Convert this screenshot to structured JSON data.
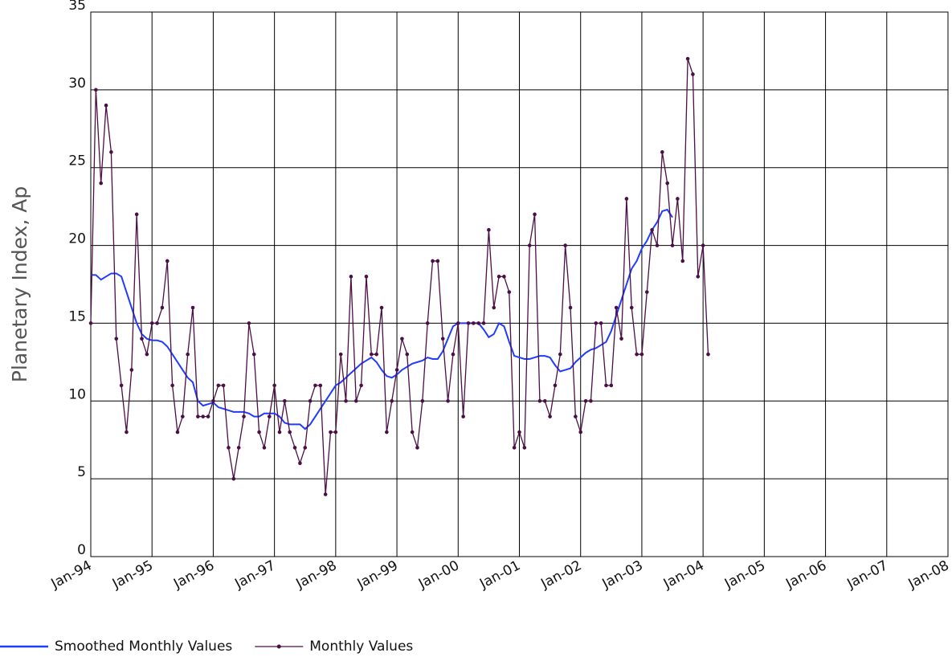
{
  "chart_data": {
    "type": "line",
    "ylabel": "Planetary Index, Ap",
    "x": [
      "1994-01",
      "1994-02",
      "1994-03",
      "1994-04",
      "1994-05",
      "1994-06",
      "1994-07",
      "1994-08",
      "1994-09",
      "1994-10",
      "1994-11",
      "1994-12",
      "1995-01",
      "1995-02",
      "1995-03",
      "1995-04",
      "1995-05",
      "1995-06",
      "1995-07",
      "1995-08",
      "1995-09",
      "1995-10",
      "1995-11",
      "1995-12",
      "1996-01",
      "1996-02",
      "1996-03",
      "1996-04",
      "1996-05",
      "1996-06",
      "1996-07",
      "1996-08",
      "1996-09",
      "1996-10",
      "1996-11",
      "1996-12",
      "1997-01",
      "1997-02",
      "1997-03",
      "1997-04",
      "1997-05",
      "1997-06",
      "1997-07",
      "1997-08",
      "1997-09",
      "1997-10",
      "1997-11",
      "1997-12",
      "1998-01",
      "1998-02",
      "1998-03",
      "1998-04",
      "1998-05",
      "1998-06",
      "1998-07",
      "1998-08",
      "1998-09",
      "1998-10",
      "1998-11",
      "1998-12",
      "1999-01",
      "1999-02",
      "1999-03",
      "1999-04",
      "1999-05",
      "1999-06",
      "1999-07",
      "1999-08",
      "1999-09",
      "1999-10",
      "1999-11",
      "1999-12",
      "2000-01",
      "2000-02",
      "2000-03",
      "2000-04",
      "2000-05",
      "2000-06",
      "2000-07",
      "2000-08",
      "2000-09",
      "2000-10",
      "2000-11",
      "2000-12",
      "2001-01",
      "2001-02",
      "2001-03",
      "2001-04",
      "2001-05",
      "2001-06",
      "2001-07",
      "2001-08",
      "2001-09",
      "2001-10",
      "2001-11",
      "2001-12",
      "2002-01",
      "2002-02",
      "2002-03",
      "2002-04",
      "2002-05",
      "2002-06",
      "2002-07",
      "2002-08",
      "2002-09",
      "2002-10",
      "2002-11",
      "2002-12",
      "2003-01",
      "2003-02",
      "2003-03",
      "2003-04",
      "2003-05",
      "2003-06",
      "2003-07",
      "2003-08",
      "2003-09",
      "2003-10",
      "2003-11",
      "2003-12",
      "2004-01",
      "2004-02"
    ],
    "series": [
      {
        "name": "Smoothed Monthly Values",
        "color": "#1f3cff",
        "markers": false,
        "values": [
          18.1,
          18.1,
          17.8,
          18.0,
          18.2,
          18.2,
          18.0,
          17.0,
          16.0,
          15.0,
          14.3,
          14.0,
          13.9,
          13.9,
          13.8,
          13.5,
          13.0,
          12.5,
          12.0,
          11.5,
          11.2,
          10.0,
          9.7,
          9.8,
          9.9,
          9.6,
          9.5,
          9.4,
          9.3,
          9.3,
          9.3,
          9.2,
          9.0,
          9.0,
          9.2,
          9.2,
          9.2,
          9.0,
          8.6,
          8.5,
          8.5,
          8.5,
          8.2,
          8.5,
          9.0,
          9.5,
          10.0,
          10.5,
          11.0,
          11.2,
          11.5,
          11.8,
          12.1,
          12.4,
          12.6,
          12.8,
          12.5,
          12.0,
          11.6,
          11.5,
          11.7,
          12.0,
          12.2,
          12.4,
          12.5,
          12.6,
          12.8,
          12.7,
          12.7,
          13.2,
          14.0,
          14.8,
          15.0,
          15.0,
          15.0,
          15.0,
          15.0,
          14.6,
          14.1,
          14.3,
          15.0,
          14.8,
          13.8,
          12.9,
          12.8,
          12.7,
          12.7,
          12.8,
          12.9,
          12.9,
          12.8,
          12.3,
          11.9,
          12.0,
          12.1,
          12.5,
          12.8,
          13.1,
          13.3,
          13.4,
          13.6,
          13.8,
          14.5,
          15.5,
          16.5,
          17.5,
          18.5,
          19.0,
          19.8,
          20.3,
          21.0,
          21.5,
          22.2,
          22.3,
          21.8,
          null,
          null,
          null,
          null,
          null,
          null,
          null
        ]
      },
      {
        "name": "Monthly Values",
        "color": "#4b0f45",
        "markers": true,
        "values": [
          15,
          30,
          24,
          29,
          26,
          14,
          11,
          8,
          12,
          22,
          14,
          13,
          15,
          15,
          16,
          19,
          11,
          8,
          9,
          13,
          16,
          9,
          9,
          9,
          10,
          11,
          11,
          7,
          5,
          7,
          9,
          15,
          13,
          8,
          7,
          9,
          11,
          8,
          10,
          8,
          7,
          6,
          7,
          10,
          11,
          11,
          4,
          8,
          8,
          13,
          10,
          18,
          10,
          11,
          18,
          13,
          13,
          16,
          8,
          10,
          12,
          14,
          13,
          8,
          7,
          10,
          15,
          19,
          19,
          14,
          10,
          13,
          15,
          9,
          15,
          15,
          15,
          15,
          21,
          16,
          18,
          18,
          17,
          7,
          8,
          7,
          20,
          22,
          10,
          10,
          9,
          11,
          13,
          20,
          16,
          9,
          8,
          10,
          10,
          15,
          15,
          11,
          11,
          16,
          14,
          23,
          16,
          13,
          13,
          17,
          21,
          20,
          26,
          24,
          20,
          23,
          19,
          32,
          31,
          18,
          20,
          13
        ]
      }
    ],
    "xlim": [
      "1994-01",
      "2008-01"
    ],
    "xticks": [
      {
        "value": "1994-01",
        "label": "Jan-94"
      },
      {
        "value": "1995-01",
        "label": "Jan-95"
      },
      {
        "value": "1996-01",
        "label": "Jan-96"
      },
      {
        "value": "1997-01",
        "label": "Jan-97"
      },
      {
        "value": "1998-01",
        "label": "Jan-98"
      },
      {
        "value": "1999-01",
        "label": "Jan-99"
      },
      {
        "value": "2000-01",
        "label": "Jan-00"
      },
      {
        "value": "2001-01",
        "label": "Jan-01"
      },
      {
        "value": "2002-01",
        "label": "Jan-02"
      },
      {
        "value": "2003-01",
        "label": "Jan-03"
      },
      {
        "value": "2004-01",
        "label": "Jan-04"
      },
      {
        "value": "2005-01",
        "label": "Jan-05"
      },
      {
        "value": "2006-01",
        "label": "Jan-06"
      },
      {
        "value": "2007-01",
        "label": "Jan-07"
      },
      {
        "value": "2008-01",
        "label": "Jan-08"
      }
    ],
    "ylim": [
      0,
      35
    ],
    "yticks": [
      0,
      5,
      10,
      15,
      20,
      25,
      30,
      35
    ],
    "grid": true,
    "legend": "bottom"
  }
}
